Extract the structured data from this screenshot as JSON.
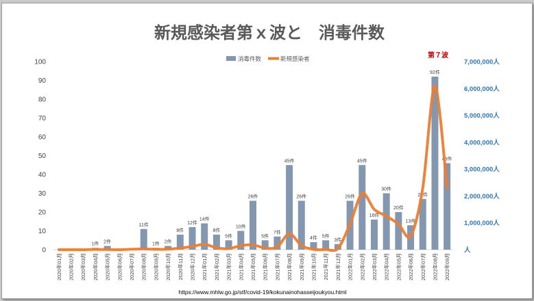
{
  "chart_data": {
    "type": "bar",
    "title": "新規感染者第ｘ波と　消毒件数",
    "source": "https://www.mhlw.go.jp/stf/covid-19/kokunainohasseijoukyou.html",
    "annotation": "第７波",
    "legend": {
      "placement": "top-center"
    },
    "grid": false,
    "colors": {
      "bar": "#8497b0",
      "line": "#ed7d31",
      "right_axis": "#2e75b6",
      "annotation": "#c00000",
      "title": "#595959"
    },
    "categories": [
      "2020年01月",
      "2020年02月",
      "2020年03月",
      "2020年04月",
      "2020年05月",
      "2020年06月",
      "2020年07月",
      "2020年08月",
      "2020年09月",
      "2020年10月",
      "2020年11月",
      "2020年12月",
      "2021年01月",
      "2021年02月",
      "2021年03月",
      "2021年04月",
      "2021年05月",
      "2021年06月",
      "2021年07月",
      "2021年08月",
      "2021年09月",
      "2021年10月",
      "2021年11月",
      "2021年12月",
      "2022年01月",
      "2022年02月",
      "2022年03月",
      "2022年04月",
      "2022年05月",
      "2022年06月",
      "2022年07月",
      "2022年08月",
      "2022年09月"
    ],
    "y_ticks": [
      "0",
      "10",
      "20",
      "30",
      "40",
      "50",
      "60",
      "70",
      "80",
      "90",
      "100"
    ],
    "ylim": [
      0,
      100
    ],
    "y2_ticks": [
      "人",
      "1,000,000人",
      "2,000,000人",
      "3,000,000人",
      "4,000,000人",
      "5,000,000人",
      "6,000,000人",
      "7,000,000人"
    ],
    "y2lim": [
      0,
      7000000
    ],
    "series": [
      {
        "name": "消毒件数",
        "type": "bar",
        "axis": "left",
        "values": [
          0,
          0,
          0,
          1,
          2,
          0,
          0,
          11,
          1,
          2,
          8,
          12,
          14,
          8,
          5,
          10,
          26,
          5,
          7,
          45,
          26,
          4,
          5,
          3,
          26,
          45,
          16,
          30,
          20,
          13,
          27,
          92,
          46
        ],
        "labels": [
          "",
          "",
          "",
          "1件",
          "2件",
          "",
          "",
          "11件",
          "1件",
          "2件",
          "8件",
          "12件",
          "14件",
          "8件",
          "5件",
          "10件",
          "26件",
          "5件",
          "7件",
          "45件",
          "26件",
          "4件",
          "5件",
          "3件",
          "26件",
          "45件",
          "16件",
          "30件",
          "20件",
          "13件",
          "27件",
          "92件",
          "46件"
        ]
      },
      {
        "name": "新規感染者",
        "type": "line",
        "axis": "right",
        "values": [
          0,
          0,
          0,
          10000,
          5000,
          0,
          20000,
          30000,
          15000,
          20000,
          60000,
          120000,
          200000,
          70000,
          40000,
          150000,
          180000,
          60000,
          100000,
          600000,
          150000,
          10000,
          5000,
          40000,
          950000,
          2100000,
          1500000,
          1250000,
          950000,
          500000,
          2300000,
          6100000,
          2300000
        ]
      }
    ]
  }
}
